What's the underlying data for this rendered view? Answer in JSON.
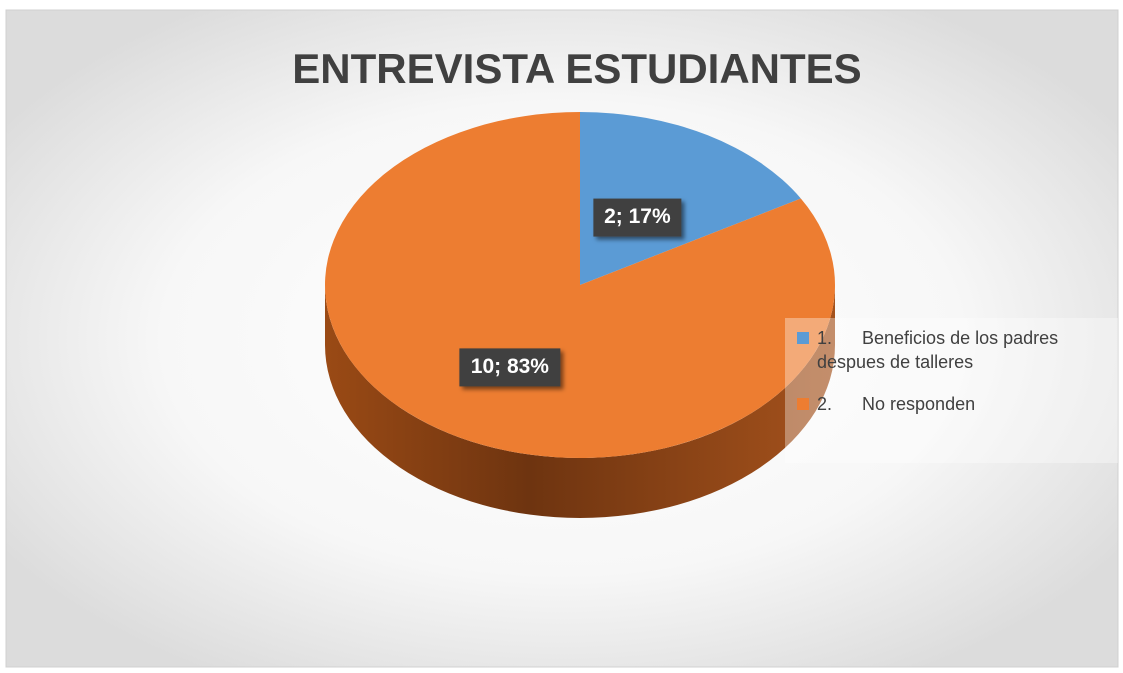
{
  "chart_data": {
    "type": "pie",
    "title": "ENTREVISTA ESTUDIANTES",
    "categories": [
      "1.      Beneficios de los padres despues de talleres",
      "2.      No responden"
    ],
    "values": [
      2,
      10
    ],
    "value_labels": [
      "2; 17%",
      "10; 83%"
    ],
    "colors": [
      "#5b9bd5",
      "#ed7d31"
    ],
    "legend": "right"
  }
}
